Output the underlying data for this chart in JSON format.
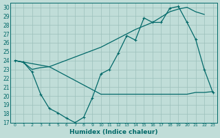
{
  "xlabel": "Humidex (Indice chaleur)",
  "bg_color": "#c0ddd8",
  "grid_color": "#9cbfba",
  "line_color": "#006868",
  "xlim": [
    -0.5,
    23.5
  ],
  "ylim": [
    17,
    30.5
  ],
  "yticks": [
    17,
    18,
    19,
    20,
    21,
    22,
    23,
    24,
    25,
    26,
    27,
    28,
    29,
    30
  ],
  "xticks": [
    0,
    1,
    2,
    3,
    4,
    5,
    6,
    7,
    8,
    9,
    10,
    11,
    12,
    13,
    14,
    15,
    16,
    17,
    18,
    19,
    20,
    21,
    22,
    23
  ],
  "line_zigzag_x": [
    0,
    1,
    2,
    3,
    4,
    5,
    6,
    7,
    8,
    9,
    10,
    11,
    12,
    13,
    14,
    15,
    16,
    17,
    18,
    19,
    20,
    21,
    22,
    23
  ],
  "line_zigzag_y": [
    24.0,
    23.8,
    22.7,
    20.2,
    18.6,
    18.1,
    17.5,
    17.0,
    17.6,
    19.8,
    22.5,
    23.0,
    24.8,
    26.8,
    26.3,
    28.8,
    28.3,
    28.3,
    29.9,
    30.1,
    28.3,
    26.4,
    23.0,
    20.4
  ],
  "line_diagonal_x": [
    0,
    4,
    10,
    14,
    16,
    18,
    19,
    20,
    21,
    22
  ],
  "line_diagonal_y": [
    24.0,
    23.3,
    25.5,
    27.5,
    28.3,
    29.5,
    29.8,
    30.0,
    29.5,
    29.2
  ],
  "line_flat_x": [
    0,
    1,
    2,
    3,
    4,
    10,
    17,
    20,
    21,
    22,
    23
  ],
  "line_flat_y": [
    24.0,
    23.8,
    23.0,
    23.2,
    23.3,
    20.2,
    20.2,
    20.2,
    20.4,
    20.4,
    20.5
  ]
}
